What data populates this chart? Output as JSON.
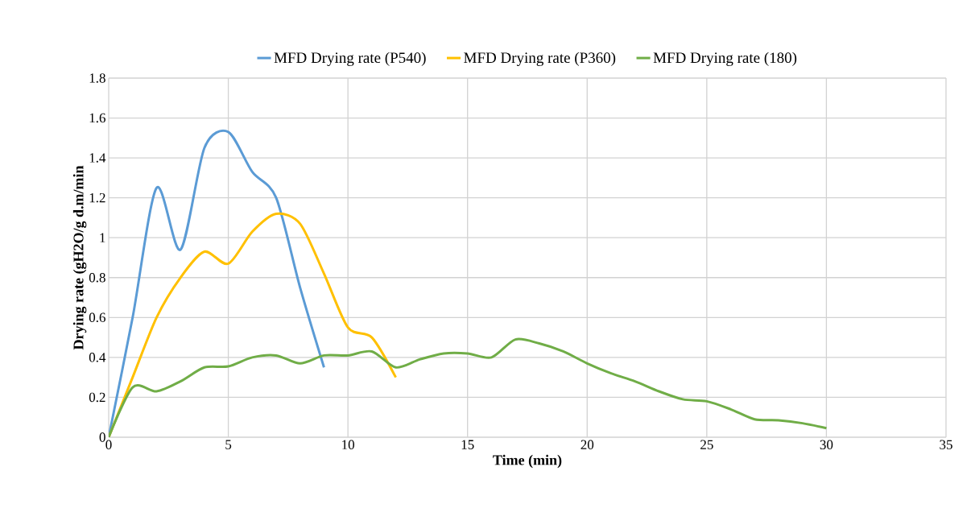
{
  "chart_data": {
    "type": "line",
    "xlabel": "Time (min)",
    "ylabel": "Drying rate (gH2O/g d.m/min",
    "xlim": [
      0,
      35
    ],
    "ylim": [
      0,
      1.8
    ],
    "xticks": [
      0,
      5,
      10,
      15,
      20,
      25,
      30,
      35
    ],
    "yticks": [
      0,
      0.2,
      0.4,
      0.6,
      0.8,
      1,
      1.2,
      1.4,
      1.6,
      1.8
    ],
    "grid": true,
    "legend": "top",
    "marker": "none",
    "line_style": "solid",
    "series": [
      {
        "name": "MFD Drying rate (P540)",
        "color": "#5b9bd5",
        "x": [
          0,
          1,
          2,
          3,
          4,
          5,
          6,
          7,
          8,
          9
        ],
        "values": [
          0,
          0.6,
          1.25,
          0.94,
          1.45,
          1.53,
          1.33,
          1.2,
          0.75,
          0.35
        ]
      },
      {
        "name": "MFD Drying rate (P360)",
        "color": "#ffc000",
        "x": [
          0,
          1,
          2,
          3,
          4,
          5,
          6,
          7,
          8,
          9,
          10,
          11,
          12
        ],
        "values": [
          0,
          0.3,
          0.6,
          0.8,
          0.93,
          0.87,
          1.03,
          1.12,
          1.07,
          0.82,
          0.55,
          0.5,
          0.3
        ]
      },
      {
        "name": "MFD Drying rate (180)",
        "color": "#70ad47",
        "x": [
          0,
          1,
          2,
          3,
          4,
          5,
          6,
          7,
          8,
          9,
          10,
          11,
          12,
          13,
          14,
          15,
          16,
          17,
          18,
          19,
          20,
          21,
          22,
          23,
          24,
          25,
          26,
          27,
          28,
          29,
          30
        ],
        "values": [
          0,
          0.25,
          0.23,
          0.28,
          0.35,
          0.355,
          0.4,
          0.41,
          0.37,
          0.41,
          0.41,
          0.43,
          0.35,
          0.39,
          0.42,
          0.42,
          0.4,
          0.49,
          0.47,
          0.43,
          0.37,
          0.32,
          0.28,
          0.23,
          0.19,
          0.18,
          0.14,
          0.09,
          0.085,
          0.07,
          0.045
        ]
      }
    ]
  }
}
